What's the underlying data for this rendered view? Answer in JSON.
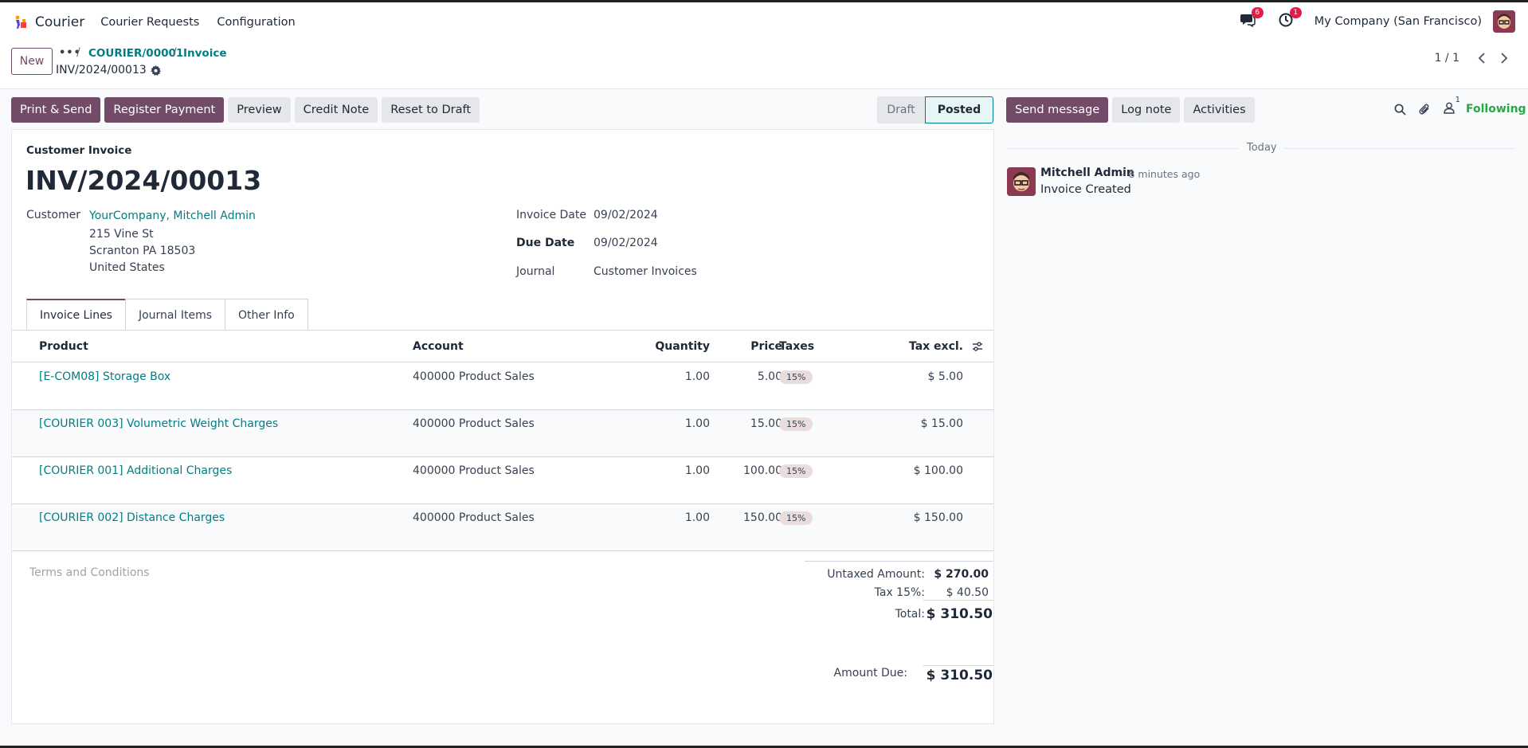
{
  "topbar": {
    "app_name": "Courier",
    "menu": [
      "Courier Requests",
      "Configuration"
    ],
    "messages_count": "6",
    "activities_count": "1",
    "company": "My Company (San Francisco)"
  },
  "control": {
    "new_label": "New",
    "breadcrumb_dots": "•••",
    "breadcrumb": [
      "COURIER/00001",
      "Invoice"
    ],
    "current_record": "INV/2024/00013",
    "pager": "1 / 1"
  },
  "actions": {
    "print_send": "Print & Send",
    "register_payment": "Register Payment",
    "preview": "Preview",
    "credit_note": "Credit Note",
    "reset_to_draft": "Reset to Draft"
  },
  "status": {
    "stages": [
      "Draft",
      "Posted"
    ],
    "current": "Posted"
  },
  "invoice": {
    "subtitle": "Customer Invoice",
    "number": "INV/2024/00013",
    "customer_label": "Customer",
    "customer_name": "YourCompany, Mitchell Admin",
    "address": [
      "215 Vine St",
      "Scranton PA 18503",
      "United States"
    ],
    "invoice_date_label": "Invoice Date",
    "invoice_date": "09/02/2024",
    "due_date_label": "Due Date",
    "due_date": "09/02/2024",
    "journal_label": "Journal",
    "journal": "Customer Invoices"
  },
  "tabs": [
    "Invoice Lines",
    "Journal Items",
    "Other Info"
  ],
  "lines": {
    "headers": [
      "Product",
      "Account",
      "Quantity",
      "Price",
      "Taxes",
      "Tax excl."
    ],
    "rows": [
      {
        "product": "[E-COM08] Storage Box",
        "account": "400000 Product Sales",
        "quantity": "1.00",
        "price": "5.00",
        "tax": "15%",
        "subtotal": "$ 5.00"
      },
      {
        "product": "[COURIER 003] Volumetric Weight Charges",
        "account": "400000 Product Sales",
        "quantity": "1.00",
        "price": "15.00",
        "tax": "15%",
        "subtotal": "$ 15.00"
      },
      {
        "product": "[COURIER 001] Additional Charges",
        "account": "400000 Product Sales",
        "quantity": "1.00",
        "price": "100.00",
        "tax": "15%",
        "subtotal": "$ 100.00"
      },
      {
        "product": "[COURIER 002] Distance Charges",
        "account": "400000 Product Sales",
        "quantity": "1.00",
        "price": "150.00",
        "tax": "15%",
        "subtotal": "$ 150.00"
      }
    ]
  },
  "terms_placeholder": "Terms and Conditions",
  "totals": {
    "untaxed_label": "Untaxed Amount:",
    "untaxed": "$ 270.00",
    "tax_label": "Tax 15%:",
    "tax": "$ 40.50",
    "total_label": "Total:",
    "total": "$ 310.50",
    "due_label": "Amount Due:",
    "due": "$ 310.50"
  },
  "chatter": {
    "send_message": "Send message",
    "log_note": "Log note",
    "activities": "Activities",
    "followers_count": "1",
    "following": "Following",
    "date_separator": "Today",
    "message": {
      "author": "Mitchell Admin",
      "time": "- 8 minutes ago",
      "body": "Invoice Created"
    }
  },
  "colors": {
    "primary": "#714b67",
    "link": "#017e84",
    "following": "#28a745",
    "badge": "#e11d48"
  }
}
